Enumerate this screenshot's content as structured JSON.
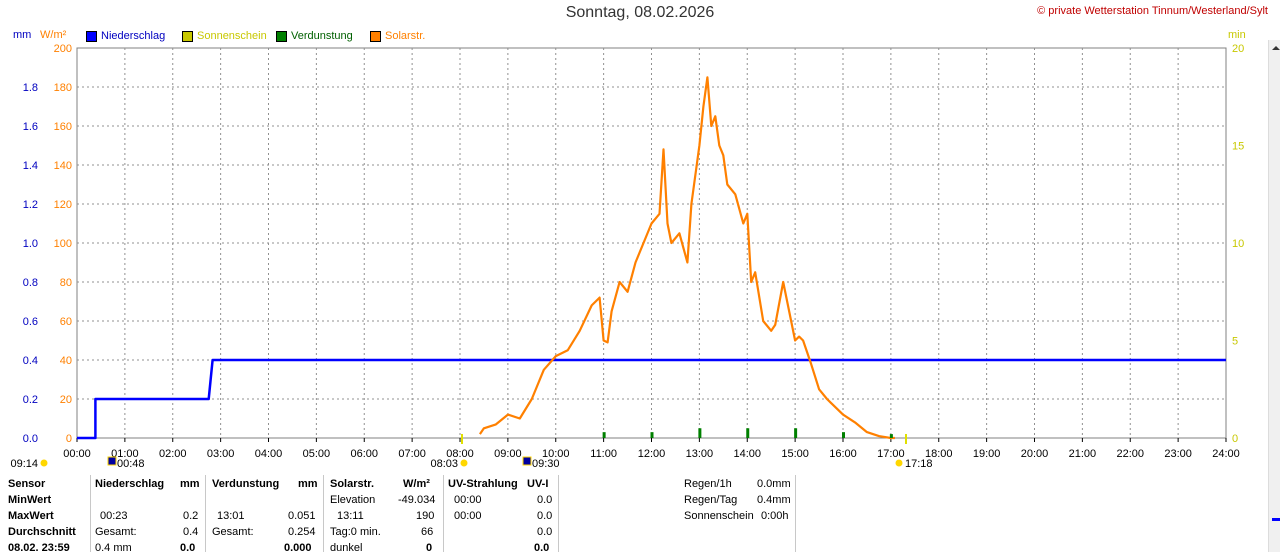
{
  "title": "Sonntag, 08.02.2026",
  "copyright": "© private Wetterstation Tinnum/Westerland/Sylt",
  "units": {
    "left1": "mm",
    "left2": "W/m²",
    "right": "min"
  },
  "legend": [
    {
      "label": "Niederschlag",
      "color": "#0000ff"
    },
    {
      "label": "Sonnenschein",
      "color": "#c8c800"
    },
    {
      "label": "Verdunstung",
      "color": "#008000"
    },
    {
      "label": "Solarstr.",
      "color": "#ff8000"
    }
  ],
  "chart_data": {
    "type": "line",
    "x_ticks": [
      "00:00",
      "01:00",
      "02:00",
      "03:00",
      "04:00",
      "05:00",
      "06:00",
      "07:00",
      "08:00",
      "09:00",
      "10:00",
      "11:00",
      "12:00",
      "13:00",
      "14:00",
      "15:00",
      "16:00",
      "17:00",
      "18:00",
      "19:00",
      "20:00",
      "21:00",
      "22:00",
      "23:00",
      "24:00"
    ],
    "y_mm_ticks": [
      "0.0",
      "0.2",
      "0.4",
      "0.6",
      "0.8",
      "1.0",
      "1.2",
      "1.4",
      "1.6",
      "1.8"
    ],
    "y_wm2_ticks": [
      "0",
      "20",
      "40",
      "60",
      "80",
      "100",
      "120",
      "140",
      "160",
      "180",
      "200"
    ],
    "y_min_ticks": [
      "0",
      "5",
      "10",
      "15",
      "20"
    ],
    "ylim_mm": [
      0,
      2.0
    ],
    "ylim_wm2": [
      0,
      200
    ],
    "ylim_min": [
      0,
      20
    ],
    "grid": true,
    "series": [
      {
        "name": "Niederschlag",
        "color": "#0000ff",
        "unit": "mm",
        "x": [
          "00:00",
          "00:23",
          "00:23",
          "02:45",
          "02:50",
          "24:00"
        ],
        "values": [
          0.0,
          0.0,
          0.2,
          0.2,
          0.4,
          0.4
        ]
      },
      {
        "name": "Solarstr.",
        "color": "#ff8000",
        "unit": "W/m²",
        "x": [
          "08:25",
          "08:30",
          "08:45",
          "09:00",
          "09:15",
          "09:30",
          "09:45",
          "10:00",
          "10:15",
          "10:30",
          "10:45",
          "10:55",
          "11:00",
          "11:05",
          "11:10",
          "11:20",
          "11:30",
          "11:40",
          "11:50",
          "12:00",
          "12:10",
          "12:15",
          "12:20",
          "12:25",
          "12:35",
          "12:45",
          "12:50",
          "13:00",
          "13:05",
          "13:10",
          "13:15",
          "13:20",
          "13:25",
          "13:30",
          "13:35",
          "13:45",
          "13:55",
          "14:00",
          "14:05",
          "14:10",
          "14:20",
          "14:30",
          "14:35",
          "14:45",
          "15:00",
          "15:05",
          "15:10",
          "15:20",
          "15:30",
          "15:40",
          "15:45",
          "16:00",
          "16:15",
          "16:30",
          "16:45",
          "17:00",
          "17:05"
        ],
        "values": [
          2,
          5,
          7,
          12,
          10,
          20,
          35,
          42,
          45,
          55,
          68,
          72,
          50,
          49,
          65,
          80,
          75,
          90,
          100,
          110,
          115,
          148,
          110,
          100,
          105,
          90,
          120,
          150,
          170,
          185,
          160,
          165,
          150,
          145,
          130,
          125,
          110,
          115,
          80,
          85,
          60,
          55,
          58,
          80,
          50,
          52,
          50,
          38,
          25,
          20,
          18,
          12,
          8,
          3,
          1,
          0,
          0
        ]
      },
      {
        "name": "Verdunstung",
        "color": "#008000",
        "unit": "mm",
        "x": [
          "11:00",
          "12:00",
          "13:00",
          "14:00",
          "15:00",
          "16:00",
          "17:00"
        ],
        "values": [
          0.03,
          0.03,
          0.05,
          0.05,
          0.05,
          0.03,
          0.02
        ]
      }
    ]
  },
  "time_markers": {
    "sunrise": "09:14",
    "moonset": "00:48",
    "dawn": "08:03",
    "moonrise": "09:30",
    "sunset": "17:18"
  },
  "table": {
    "row_labels": [
      "Sensor",
      "MinWert",
      "MaxWert",
      "Durchschnitt",
      "08.02. 23:59"
    ],
    "niederschlag": {
      "header": "Niederschlag",
      "unit": "mm",
      "rows": [
        [
          "",
          ""
        ],
        [
          "00:23",
          "0.2"
        ],
        [
          "Gesamt:",
          "0.4"
        ],
        [
          "0.4 mm",
          "0.0"
        ]
      ]
    },
    "verdunstung": {
      "header": "Verdunstung",
      "unit": "mm",
      "rows": [
        [
          "",
          ""
        ],
        [
          "13:01",
          "0.051"
        ],
        [
          "Gesamt:",
          "0.254"
        ],
        [
          "",
          "0.000"
        ]
      ]
    },
    "solar": {
      "header": "Solarstr.",
      "unit": "W/m²",
      "rows": [
        [
          "Elevation",
          "-49.034"
        ],
        [
          "13:11",
          "190"
        ],
        [
          "Tag:0 min.",
          "66"
        ],
        [
          "dunkel",
          "0"
        ]
      ]
    },
    "uv": {
      "header": "UV-Strahlung",
      "unit": "UV-I",
      "rows": [
        [
          "00:00",
          "0.0"
        ],
        [
          "00:00",
          "0.0"
        ],
        [
          "",
          "0.0"
        ],
        [
          "",
          "0.0"
        ]
      ]
    },
    "extra": [
      {
        "label": "Regen/1h",
        "value": "0.0mm"
      },
      {
        "label": "Regen/Tag",
        "value": "0.4mm"
      },
      {
        "label": "Sonnenschein",
        "value": "0:00h"
      }
    ]
  }
}
